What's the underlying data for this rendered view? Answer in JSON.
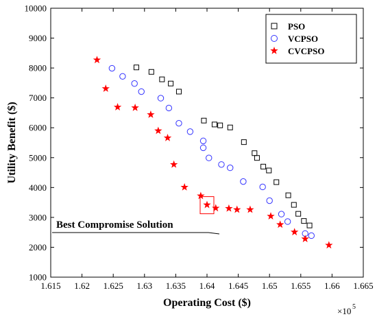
{
  "chart_data": {
    "type": "scatter",
    "title": "",
    "xlabel": "Operating Cost ($)",
    "ylabel": "Utility Benefit ($)",
    "x_multiplier_label": "×10^5",
    "x_multiplier_base": "×10",
    "x_multiplier_exp": "5",
    "xlim": [
      1.615,
      1.665
    ],
    "ylim": [
      1000,
      10000
    ],
    "xticks": [
      "1.615",
      "1.62",
      "1.625",
      "1.63",
      "1.635",
      "1.64",
      "1.645",
      "1.65",
      "1.655",
      "1.66",
      "1.665"
    ],
    "yticks": [
      "1000",
      "2000",
      "3000",
      "4000",
      "5000",
      "6000",
      "7000",
      "8000",
      "9000",
      "10000"
    ],
    "grid": false,
    "legend_position": "top-right",
    "series": [
      {
        "name": "PSO",
        "marker": "square",
        "color": "#000000",
        "points": [
          [
            1.6287,
            8020
          ],
          [
            1.6311,
            7870
          ],
          [
            1.6328,
            7620
          ],
          [
            1.6342,
            7480
          ],
          [
            1.6355,
            7210
          ],
          [
            1.6395,
            6240
          ],
          [
            1.6412,
            6110
          ],
          [
            1.6421,
            6080
          ],
          [
            1.6437,
            6010
          ],
          [
            1.6459,
            5520
          ],
          [
            1.6476,
            5150
          ],
          [
            1.648,
            4990
          ],
          [
            1.649,
            4700
          ],
          [
            1.6499,
            4570
          ],
          [
            1.6511,
            4180
          ],
          [
            1.653,
            3740
          ],
          [
            1.6539,
            3420
          ],
          [
            1.6546,
            3120
          ],
          [
            1.6555,
            2880
          ],
          [
            1.6564,
            2730
          ]
        ]
      },
      {
        "name": "VCPSO",
        "marker": "circle",
        "color": "#3333ff",
        "points": [
          [
            1.6248,
            7990
          ],
          [
            1.6265,
            7720
          ],
          [
            1.6284,
            7480
          ],
          [
            1.6295,
            7210
          ],
          [
            1.6326,
            6990
          ],
          [
            1.6339,
            6660
          ],
          [
            1.6355,
            6150
          ],
          [
            1.6373,
            5870
          ],
          [
            1.6394,
            5560
          ],
          [
            1.6394,
            5330
          ],
          [
            1.6403,
            4990
          ],
          [
            1.6423,
            4770
          ],
          [
            1.6437,
            4660
          ],
          [
            1.6458,
            4200
          ],
          [
            1.6489,
            4020
          ],
          [
            1.65,
            3560
          ],
          [
            1.6519,
            3110
          ],
          [
            1.6529,
            2860
          ],
          [
            1.6557,
            2460
          ],
          [
            1.6567,
            2390
          ]
        ]
      },
      {
        "name": "CVCPSO",
        "marker": "star",
        "color": "#ff0000",
        "points": [
          [
            1.6224,
            8270
          ],
          [
            1.6238,
            7310
          ],
          [
            1.6257,
            6690
          ],
          [
            1.6285,
            6670
          ],
          [
            1.631,
            6440
          ],
          [
            1.6322,
            5900
          ],
          [
            1.6337,
            5660
          ],
          [
            1.6347,
            4770
          ],
          [
            1.6364,
            4010
          ],
          [
            1.639,
            3720
          ],
          [
            1.64,
            3420
          ],
          [
            1.6414,
            3310
          ],
          [
            1.6435,
            3300
          ],
          [
            1.6448,
            3260
          ],
          [
            1.6469,
            3260
          ],
          [
            1.6502,
            3040
          ],
          [
            1.6517,
            2760
          ],
          [
            1.654,
            2510
          ],
          [
            1.6557,
            2280
          ],
          [
            1.6595,
            2070
          ]
        ]
      }
    ],
    "annotations": [
      {
        "text": "Best Compromise Solution",
        "target": [
          1.64,
          3420
        ]
      }
    ]
  }
}
